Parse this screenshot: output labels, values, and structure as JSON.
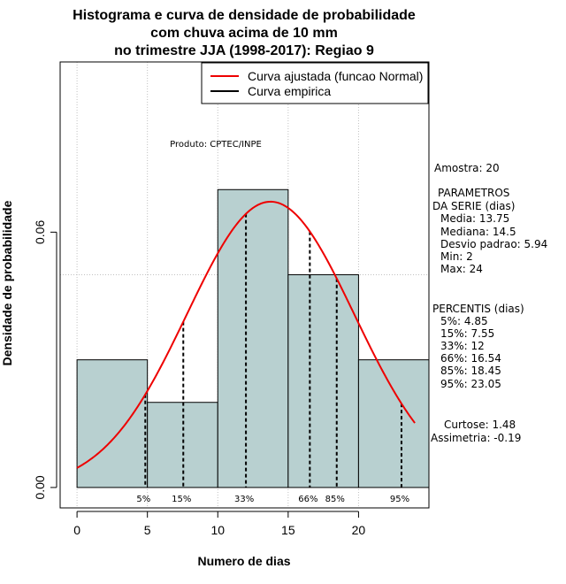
{
  "chart_data": {
    "type": "bar",
    "title_lines": [
      "Histograma e curva de densidade de probabilidade",
      "com chuva acima de 10 mm",
      "no trimestre JJA (1998-2017): Regiao 9"
    ],
    "xlabel": "Numero de dias",
    "ylabel": "Densidade de probabilidade",
    "xlim": [
      -1.2,
      25
    ],
    "ylim": [
      -0.0048,
      0.1
    ],
    "x_ticks": [
      0,
      5,
      10,
      15,
      20
    ],
    "y_ticks": [
      0.0,
      0.06
    ],
    "y_tick_labels": [
      "0.00",
      "0.06"
    ],
    "x_grid": [
      0,
      5,
      10,
      15,
      20
    ],
    "y_grid": [
      0.05,
      0.1
    ],
    "bins": [
      {
        "start": 0,
        "end": 5,
        "density": 0.03
      },
      {
        "start": 5,
        "end": 10,
        "density": 0.02
      },
      {
        "start": 10,
        "end": 15,
        "density": 0.07
      },
      {
        "start": 15,
        "end": 20,
        "density": 0.05
      },
      {
        "start": 20,
        "end": 25,
        "density": 0.03
      }
    ],
    "normal_fit": {
      "mean": 13.75,
      "sd": 5.94,
      "x_from": 0,
      "x_to": 24
    },
    "percentile_lines": [
      {
        "label": "5%",
        "value": 4.85
      },
      {
        "label": "15%",
        "value": 7.55
      },
      {
        "label": "33%",
        "value": 12
      },
      {
        "label": "66%",
        "value": 16.54
      },
      {
        "label": "85%",
        "value": 18.45
      },
      {
        "label": "95%",
        "value": 23.05
      }
    ],
    "legend": {
      "position": "top-right",
      "entries": [
        {
          "label": "Curva ajustada (funcao Normal)",
          "color": "#ee0000"
        },
        {
          "label": "Curva empirica",
          "color": "#000000"
        }
      ]
    },
    "annotation": "Produto: CPTEC/INPE",
    "bar_color": "#b8d0d0",
    "curve_color": "#ee0000"
  },
  "stats_panel": {
    "amostra": "Amostra: 20",
    "param_header_1": "PARAMETROS",
    "param_header_2": "DA SERIE (dias)",
    "params": [
      "Media: 13.75",
      "Mediana: 14.5",
      "Desvio padrao: 5.94",
      "Min: 2",
      "Max: 24"
    ],
    "perc_header": "PERCENTIS (dias)",
    "percentiles": [
      "5%: 4.85",
      "15%: 7.55",
      "33%: 12",
      "66%: 16.54",
      "85%: 18.45",
      "95%: 23.05"
    ],
    "curtose": "Curtose: 1.48",
    "assimetria": "Assimetria: -0.19"
  }
}
